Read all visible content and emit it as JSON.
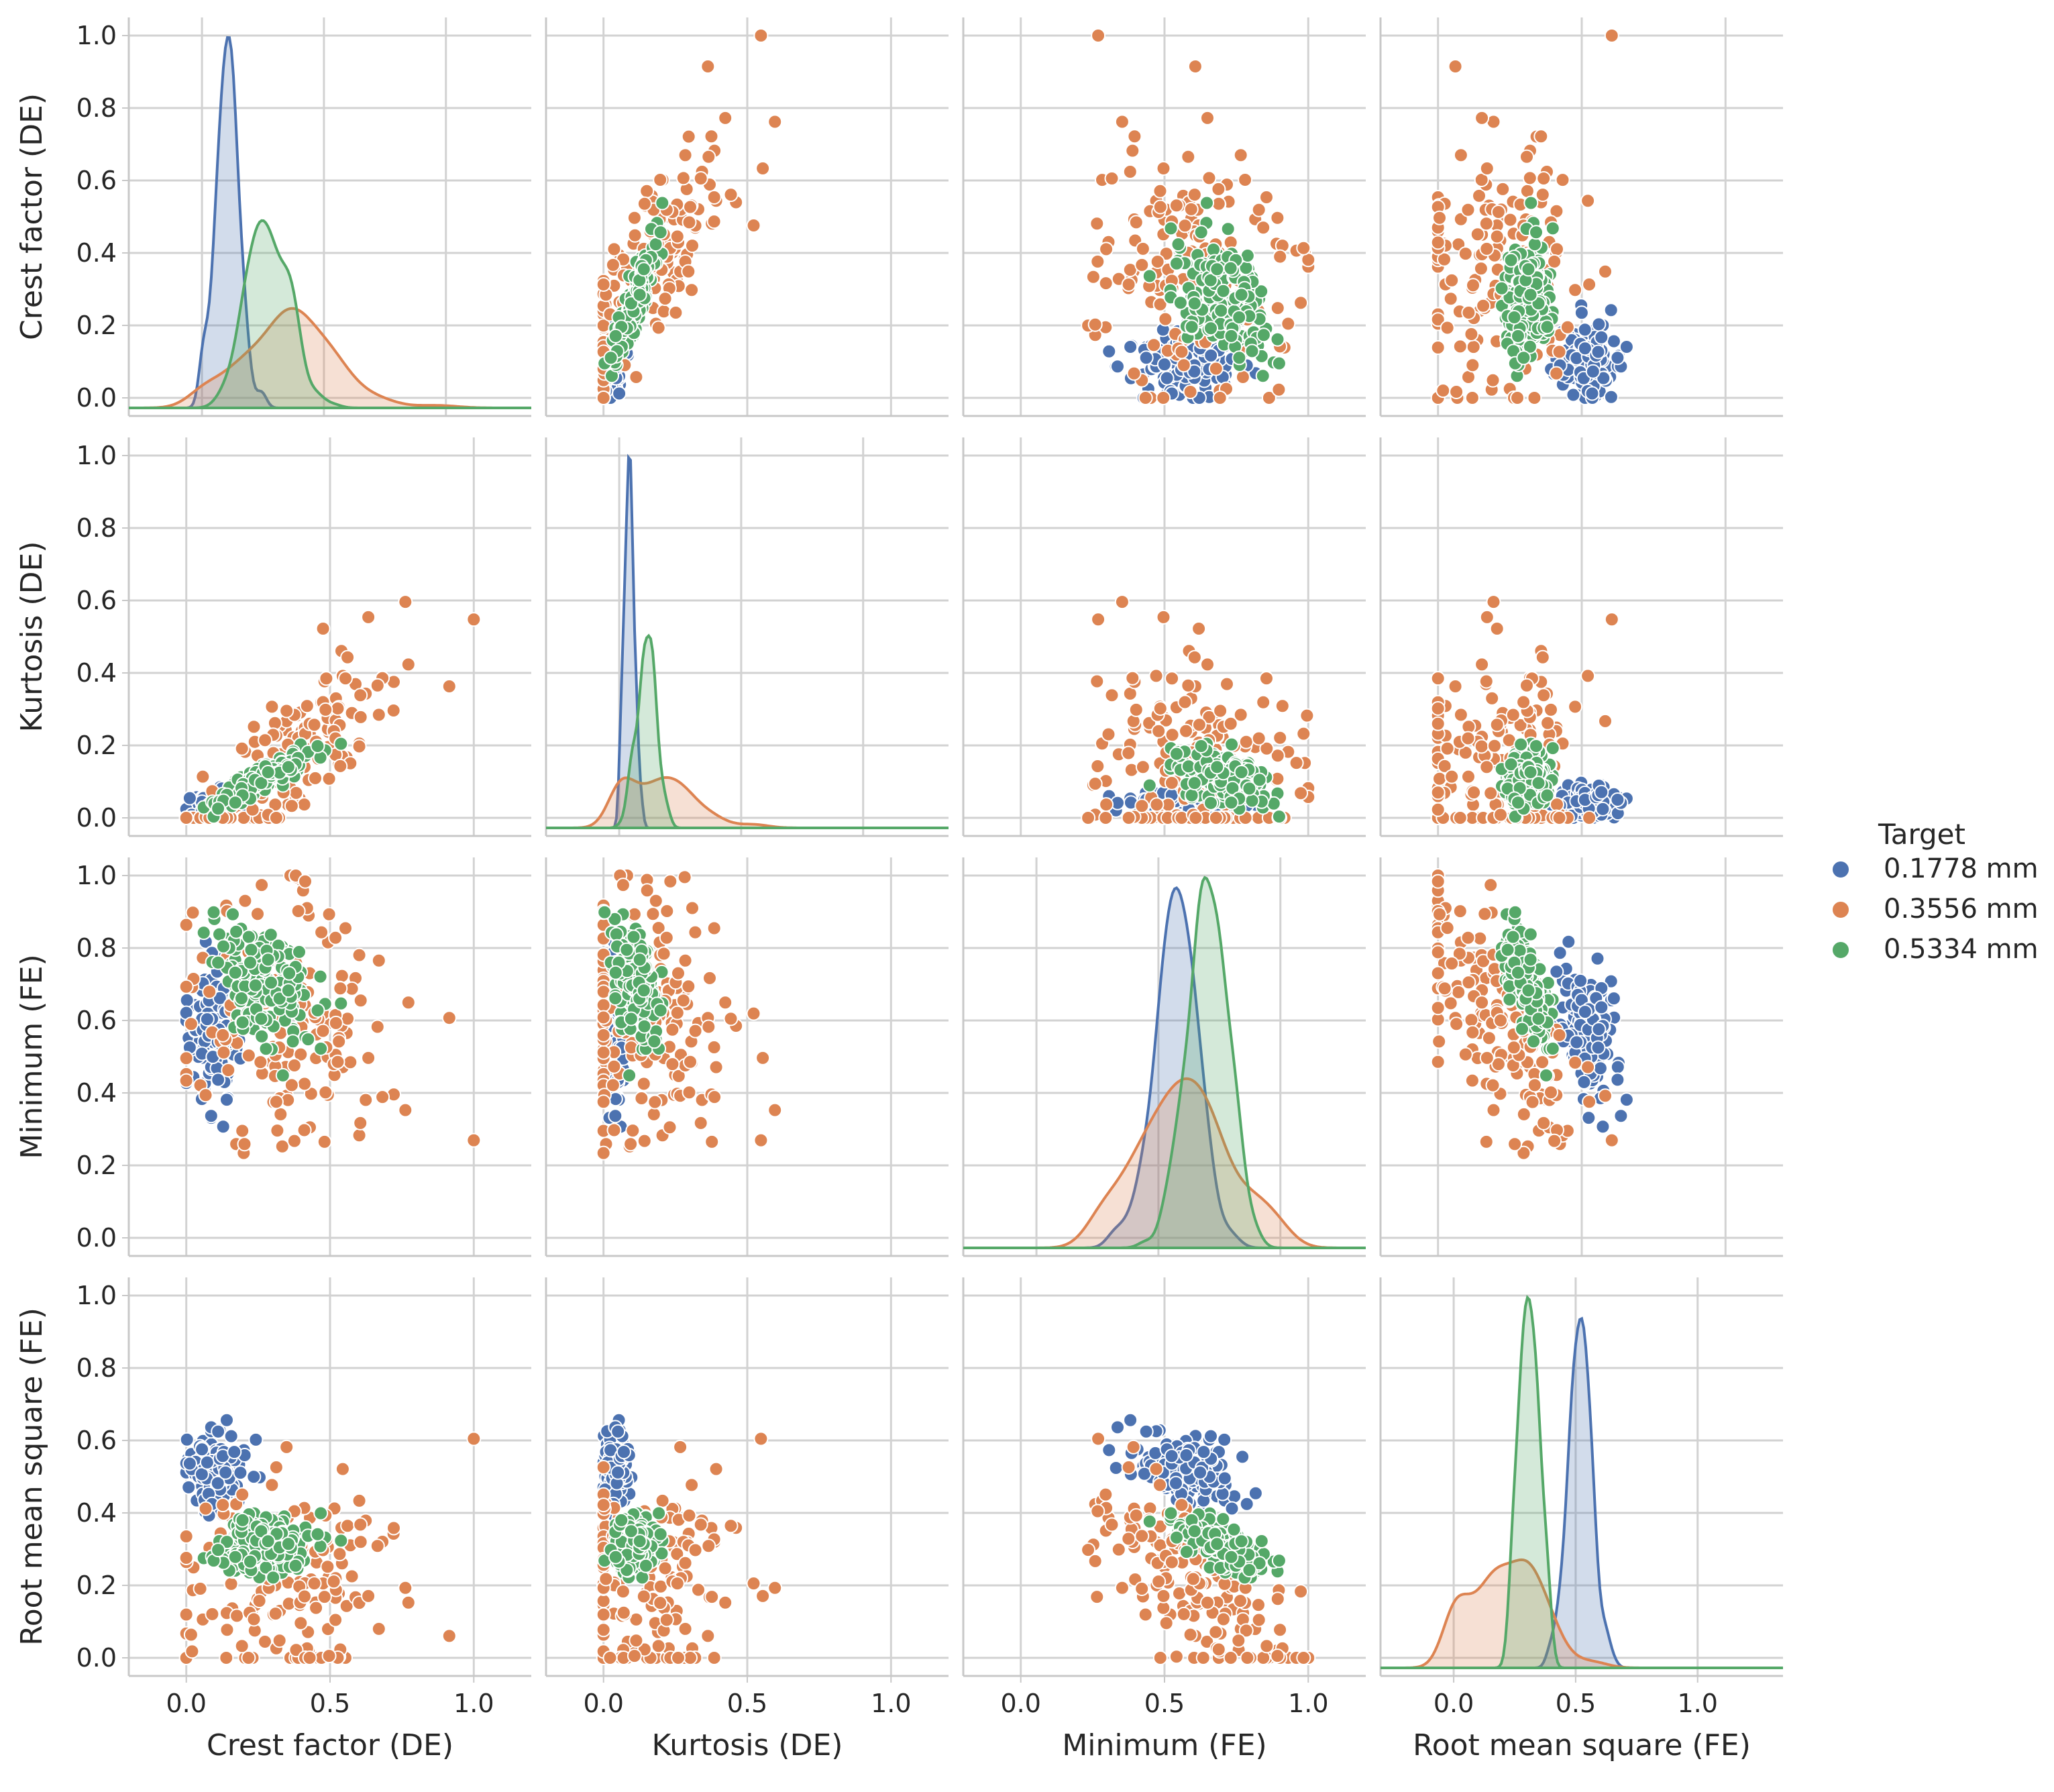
{
  "chart_data": {
    "type": "scatter",
    "title": "",
    "variables": [
      "Crest factor (DE)",
      "Kurtosis (DE)",
      "Minimum (FE)",
      "Root mean square (FE)"
    ],
    "tick_values": [
      0.0,
      0.5,
      1.0
    ],
    "tick_labels": [
      "0.0",
      "0.5",
      "1.0"
    ],
    "y_tick_values": [
      0.0,
      0.2,
      0.4,
      0.6,
      0.8,
      1.0
    ],
    "y_tick_labels": [
      "0.0",
      "0.2",
      "0.4",
      "0.6",
      "0.8",
      "1.0"
    ],
    "diag_x_range": [
      -0.3,
      1.35
    ],
    "y_range": [
      -0.05,
      1.05
    ],
    "grid": true,
    "legend": {
      "title": "Target",
      "placement": "right",
      "entries": [
        {
          "label": "0.1778 mm",
          "color": "#4c72b0"
        },
        {
          "label": "0.3556 mm",
          "color": "#dd8452"
        },
        {
          "label": "0.5334 mm",
          "color": "#55a868"
        }
      ]
    },
    "series": [
      {
        "name": "0.1778 mm",
        "color": "#4c72b0",
        "stats": {
          "mean": [
            0.1,
            0.04,
            0.57,
            0.52
          ],
          "sd": [
            0.05,
            0.02,
            0.09,
            0.05
          ],
          "corr": [
            [
              1,
              0.6,
              0.0,
              0.0
            ],
            [
              0.6,
              1,
              0.0,
              0.0
            ],
            [
              0.0,
              0.0,
              1,
              -0.4
            ],
            [
              0.0,
              0.0,
              -0.4,
              1
            ]
          ]
        }
      },
      {
        "name": "0.3556 mm",
        "color": "#dd8452",
        "stats": {
          "mean": [
            0.36,
            0.15,
            0.6,
            0.2
          ],
          "sd": [
            0.2,
            0.17,
            0.18,
            0.15
          ],
          "corr": [
            [
              1,
              0.85,
              -0.2,
              0.1
            ],
            [
              0.85,
              1,
              -0.2,
              0.1
            ],
            [
              -0.2,
              -0.2,
              1,
              -0.7
            ],
            [
              0.1,
              0.1,
              -0.7,
              1
            ]
          ]
        }
      },
      {
        "name": "0.5334 mm",
        "color": "#55a868",
        "stats": {
          "mean": [
            0.27,
            0.11,
            0.7,
            0.31
          ],
          "sd": [
            0.09,
            0.04,
            0.08,
            0.04
          ],
          "corr": [
            [
              1,
              0.9,
              -0.3,
              0.1
            ],
            [
              0.9,
              1,
              -0.3,
              0.1
            ],
            [
              -0.3,
              -0.3,
              1,
              -0.6
            ],
            [
              0.1,
              0.1,
              -0.6,
              1
            ]
          ]
        }
      }
    ],
    "points_per_series": 170
  }
}
